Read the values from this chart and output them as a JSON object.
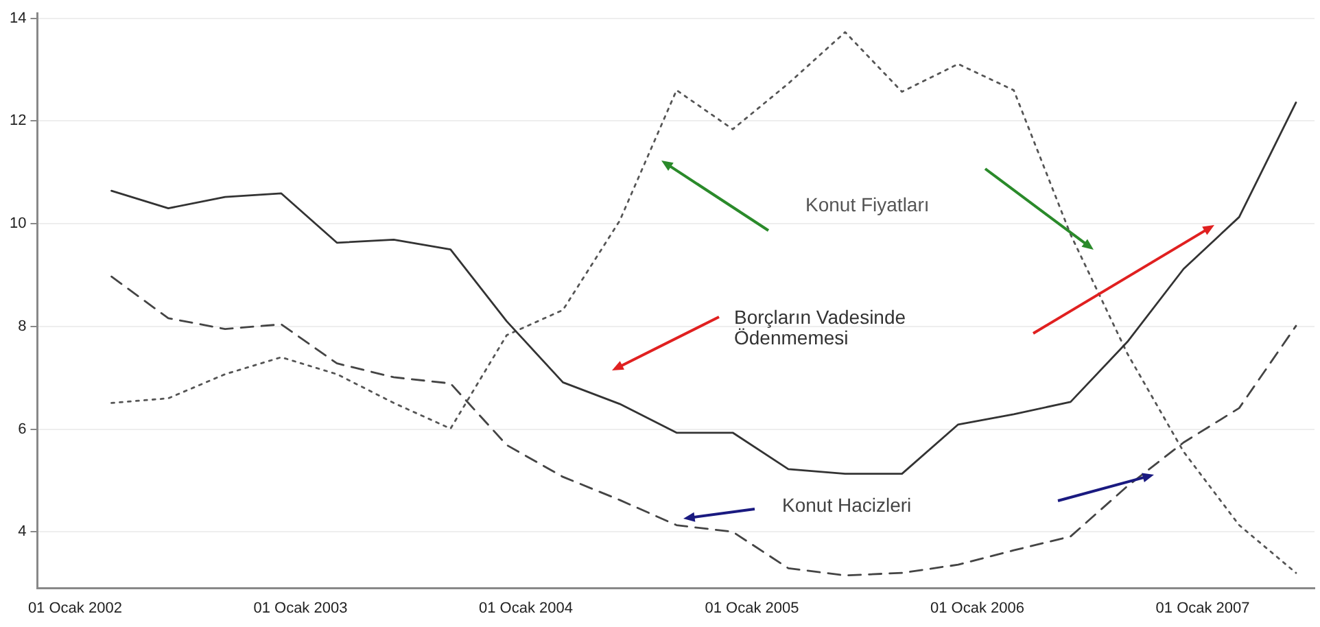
{
  "chart_data": {
    "type": "line",
    "x": [
      "2002-03",
      "2002-06",
      "2002-09",
      "2002-12",
      "2003-03",
      "2003-06",
      "2003-09",
      "2003-12",
      "2004-03",
      "2004-06",
      "2004-09",
      "2004-12",
      "2005-03",
      "2005-06",
      "2005-09",
      "2005-12",
      "2006-03",
      "2006-06",
      "2006-09",
      "2006-12",
      "2007-03",
      "2007-06"
    ],
    "series": [
      {
        "name": "Borçların Vadesinde Ödenmemesi",
        "color": "#333333",
        "line_style": "solid",
        "values": [
          10.64,
          10.3,
          10.52,
          10.59,
          9.63,
          9.69,
          9.5,
          8.1,
          6.91,
          6.49,
          5.93,
          5.93,
          5.22,
          5.13,
          5.13,
          6.09,
          6.29,
          6.53,
          7.7,
          9.12,
          10.13,
          12.36
        ]
      },
      {
        "name": "Konut Hacizleri",
        "color": "#444444",
        "line_style": "dashed",
        "values": [
          8.97,
          8.16,
          7.95,
          8.04,
          7.28,
          7.01,
          6.89,
          5.69,
          5.07,
          4.62,
          4.13,
          4.0,
          3.29,
          3.15,
          3.2,
          3.36,
          3.64,
          3.91,
          4.89,
          5.74,
          6.41,
          8.01
        ]
      },
      {
        "name": "Konut Fiyatları",
        "color": "#555555",
        "line_style": "dotted",
        "values": [
          6.51,
          6.6,
          7.07,
          7.4,
          7.07,
          6.51,
          6.01,
          7.83,
          8.32,
          10.06,
          12.6,
          11.84,
          12.73,
          13.73,
          12.57,
          13.11,
          12.6,
          9.79,
          7.47,
          5.56,
          4.13,
          3.2
        ]
      }
    ],
    "xlim": [
      "2001-11",
      "2007-07"
    ],
    "xticks": [
      {
        "value": "2002-01-01",
        "label": "01 Ocak 2002"
      },
      {
        "value": "2003-01-01",
        "label": "01 Ocak 2003"
      },
      {
        "value": "2004-01-01",
        "label": "01 Ocak 2004"
      },
      {
        "value": "2005-01-01",
        "label": "01 Ocak 2005"
      },
      {
        "value": "2006-01-01",
        "label": "01 Ocak 2006"
      },
      {
        "value": "2007-01-01",
        "label": "01 Ocak 2007"
      }
    ],
    "ylim": [
      2.9,
      14.1
    ],
    "yticks": [
      4,
      6,
      8,
      10,
      12,
      14
    ],
    "grid": "y",
    "marker": "none",
    "legend": false
  }
}
